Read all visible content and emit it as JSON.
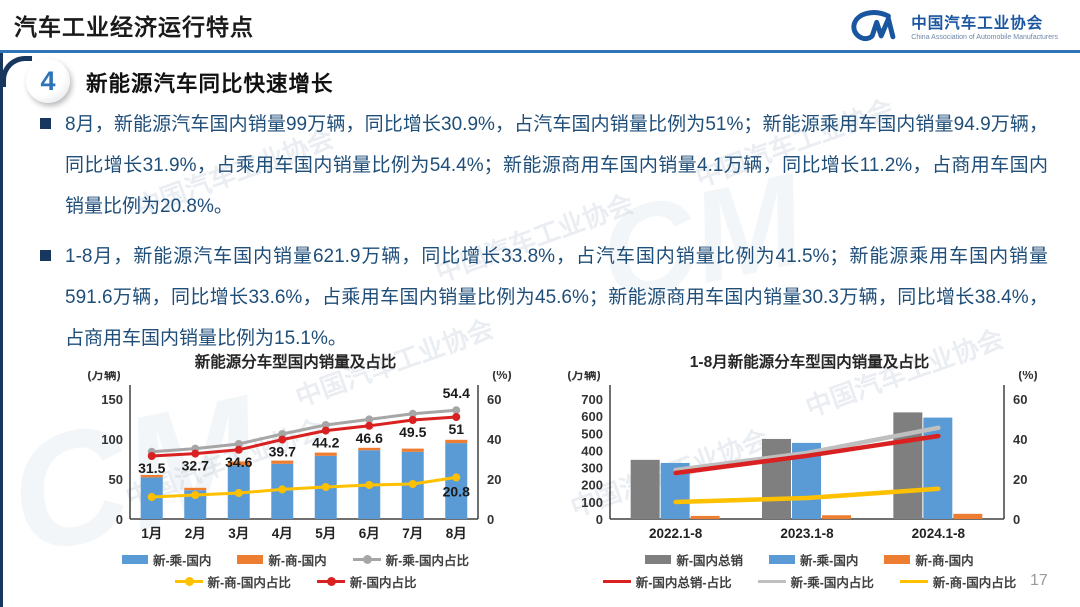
{
  "header": {
    "title": "汽车工业经济运行特点",
    "logo": {
      "mark": "CM",
      "name": "中国汽车工业协会",
      "subtitle": "China Association of Automobile Manufacturers"
    }
  },
  "section": {
    "number": "4",
    "title": "新能源汽车同比快速增长"
  },
  "bullets": [
    "8月，新能源汽车国内销量99万辆，同比增长30.9%，占汽车国内销量比例为51%；新能源乘用车国内销量94.9万辆，同比增长31.9%，占乘用车国内销量比例为54.4%；新能源商用车国内销量4.1万辆，同比增长11.2%，占商用车国内销量比例为20.8%。",
    "1-8月，新能源汽车国内销量621.9万辆，同比增长33.8%，占汽车国内销量比例为41.5%；新能源乘用车国内销量591.6万辆，同比增长33.6%，占乘用车国内销量比例为45.6%；新能源商用车国内销量30.3万辆，同比增长38.4%，占商用车国内销量比例为15.1%。"
  ],
  "watermark": {
    "text": "中国汽车工业协会",
    "mark": "CM"
  },
  "page_number": "17",
  "colors": {
    "accent_blue": "#2E74B6",
    "navy": "#17375E",
    "body_text": "#1F4E79",
    "bar_blue": "#5B9BD5",
    "bar_orange": "#ED7D31",
    "bar_gray": "#7F7F7F",
    "line_gray": "#A6A6A6",
    "line_red": "#D92121",
    "line_yellow": "#FFC000"
  },
  "chart_data": [
    {
      "type": "bar",
      "subtype": "stacked bars + percent lines (dual axis)",
      "title": "新能源分车型国内销量及占比",
      "left_axis": {
        "label": "(万辆)",
        "max": 150,
        "ticks": [
          0,
          50,
          100,
          150
        ]
      },
      "right_axis": {
        "label": "(%)",
        "max": 60,
        "ticks": [
          0,
          20,
          40,
          60
        ]
      },
      "categories": [
        "1月",
        "2月",
        "3月",
        "4月",
        "5月",
        "6月",
        "7月",
        "8月"
      ],
      "bar_mode": "stacked",
      "bar_series": [
        {
          "name": "新-乘-国内",
          "color": "#5B9BD5",
          "values": [
            52,
            36,
            67,
            69,
            79,
            86,
            84,
            94.9
          ]
        },
        {
          "name": "新-商-国内",
          "color": "#ED7D31",
          "values": [
            3,
            3,
            5,
            4,
            4,
            3,
            4,
            4.1
          ]
        }
      ],
      "line_series": [
        {
          "name": "新-乘-国内占比",
          "color": "#A6A6A6",
          "values": [
            33.6,
            35.2,
            37.5,
            42.5,
            47,
            49.8,
            52.6,
            54.4
          ],
          "point_labels": [
            null,
            null,
            null,
            null,
            null,
            null,
            null,
            "54.4"
          ],
          "label_dy": -12
        },
        {
          "name": "新-国内占比",
          "color": "#D92121",
          "values": [
            31.5,
            32.7,
            34.6,
            39.7,
            44.2,
            46.6,
            49.5,
            51
          ],
          "point_labels": [
            "31.5",
            "32.7",
            "34.6",
            "39.7",
            "44.2",
            "46.6",
            "49.5",
            "51"
          ],
          "label_dy": 17
        },
        {
          "name": "新-商-国内占比",
          "color": "#FFC000",
          "values": [
            11,
            12,
            13,
            14.8,
            16,
            17,
            17.5,
            20.8
          ],
          "point_labels": [
            null,
            null,
            null,
            null,
            null,
            null,
            null,
            "20.8"
          ],
          "label_dy": 19
        }
      ],
      "legend_rows": [
        [
          {
            "type": "bar",
            "color": "#5B9BD5",
            "label": "新-乘-国内"
          },
          {
            "type": "bar",
            "color": "#ED7D31",
            "label": "新-商-国内"
          },
          {
            "type": "line",
            "dot": true,
            "color": "#A6A6A6",
            "label": "新-乘-国内占比"
          }
        ],
        [
          {
            "type": "line",
            "dot": true,
            "color": "#FFC000",
            "label": "新-商-国内占比"
          },
          {
            "type": "line",
            "dot": true,
            "color": "#D92121",
            "label": "新-国内占比"
          }
        ]
      ]
    },
    {
      "type": "bar",
      "subtype": "grouped bars + percent lines (dual axis)",
      "title": "1-8月新能源分车型国内销量及占比",
      "left_axis": {
        "label": "(万辆)",
        "max": 700,
        "ticks": [
          0,
          100,
          200,
          300,
          400,
          500,
          600,
          700
        ]
      },
      "right_axis": {
        "label": "(%)",
        "max": 60,
        "ticks": [
          0,
          20,
          40,
          60
        ]
      },
      "categories": [
        "2022.1-8",
        "2023.1-8",
        "2024.1-8"
      ],
      "bar_mode": "grouped",
      "bar_series": [
        {
          "name": "新-国内总销",
          "color": "#7F7F7F",
          "values": [
            345,
            467,
            621.9
          ]
        },
        {
          "name": "新-乘-国内",
          "color": "#5B9BD5",
          "values": [
            327,
            444,
            591.6
          ]
        },
        {
          "name": "新-商-国内",
          "color": "#ED7D31",
          "values": [
            18,
            22,
            30.3
          ]
        }
      ],
      "line_series": [
        {
          "name": "新-乘-国内占比",
          "color": "#BFBFBF",
          "values": [
            24.5,
            33,
            45.6
          ],
          "point_labels": [
            null,
            null,
            null
          ],
          "label_dy": 0
        },
        {
          "name": "新-国内总销-占比",
          "color": "#D92121",
          "values": [
            23,
            31.6,
            41.5
          ],
          "point_labels": [
            null,
            null,
            null
          ],
          "label_dy": 0
        },
        {
          "name": "新-商-国内占比",
          "color": "#FFC000",
          "values": [
            8.5,
            10.5,
            15.1
          ],
          "point_labels": [
            null,
            null,
            null
          ],
          "label_dy": 0
        }
      ],
      "legend_rows": [
        [
          {
            "type": "bar",
            "color": "#7F7F7F",
            "label": "新-国内总销"
          },
          {
            "type": "bar",
            "color": "#5B9BD5",
            "label": "新-乘-国内"
          },
          {
            "type": "bar",
            "color": "#ED7D31",
            "label": "新-商-国内"
          }
        ],
        [
          {
            "type": "line",
            "dot": false,
            "color": "#D92121",
            "label": "新-国内总销-占比"
          },
          {
            "type": "line",
            "dot": false,
            "color": "#BFBFBF",
            "label": "新-乘-国内占比"
          },
          {
            "type": "line",
            "dot": false,
            "color": "#FFC000",
            "label": "新-商-国内占比"
          }
        ]
      ]
    }
  ]
}
